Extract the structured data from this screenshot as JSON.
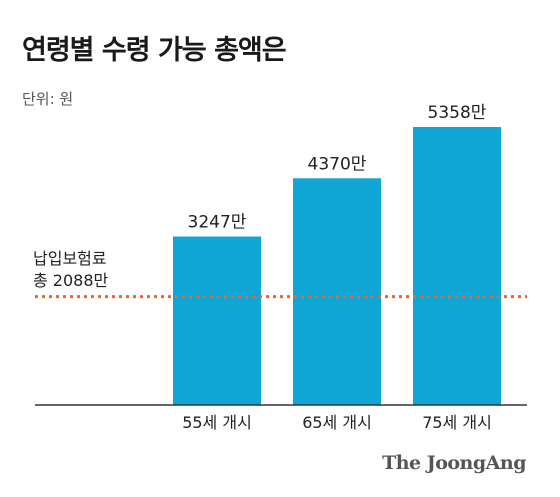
{
  "title": "연령별 수령 가능 총액은",
  "unit_label": "단위: 원",
  "brand": "The JoongAng",
  "colors": {
    "bar": "#0fa5d5",
    "reference_line": "#f26522",
    "axis": "#333333"
  },
  "chart_data": {
    "type": "bar",
    "title": "연령별 수령 가능 총액은",
    "unit": "단위: 원",
    "categories": [
      "55세 개시",
      "65세 개시",
      "75세 개시"
    ],
    "values": [
      3247,
      4370,
      5358
    ],
    "data_labels": [
      "3247만",
      "4370만",
      "5358만"
    ],
    "ylim": [
      0,
      5358
    ],
    "grid": false,
    "reference_line": {
      "value": 2088,
      "label_lines": [
        "납입보험료",
        "총 2088만"
      ],
      "style": "dotted"
    }
  }
}
